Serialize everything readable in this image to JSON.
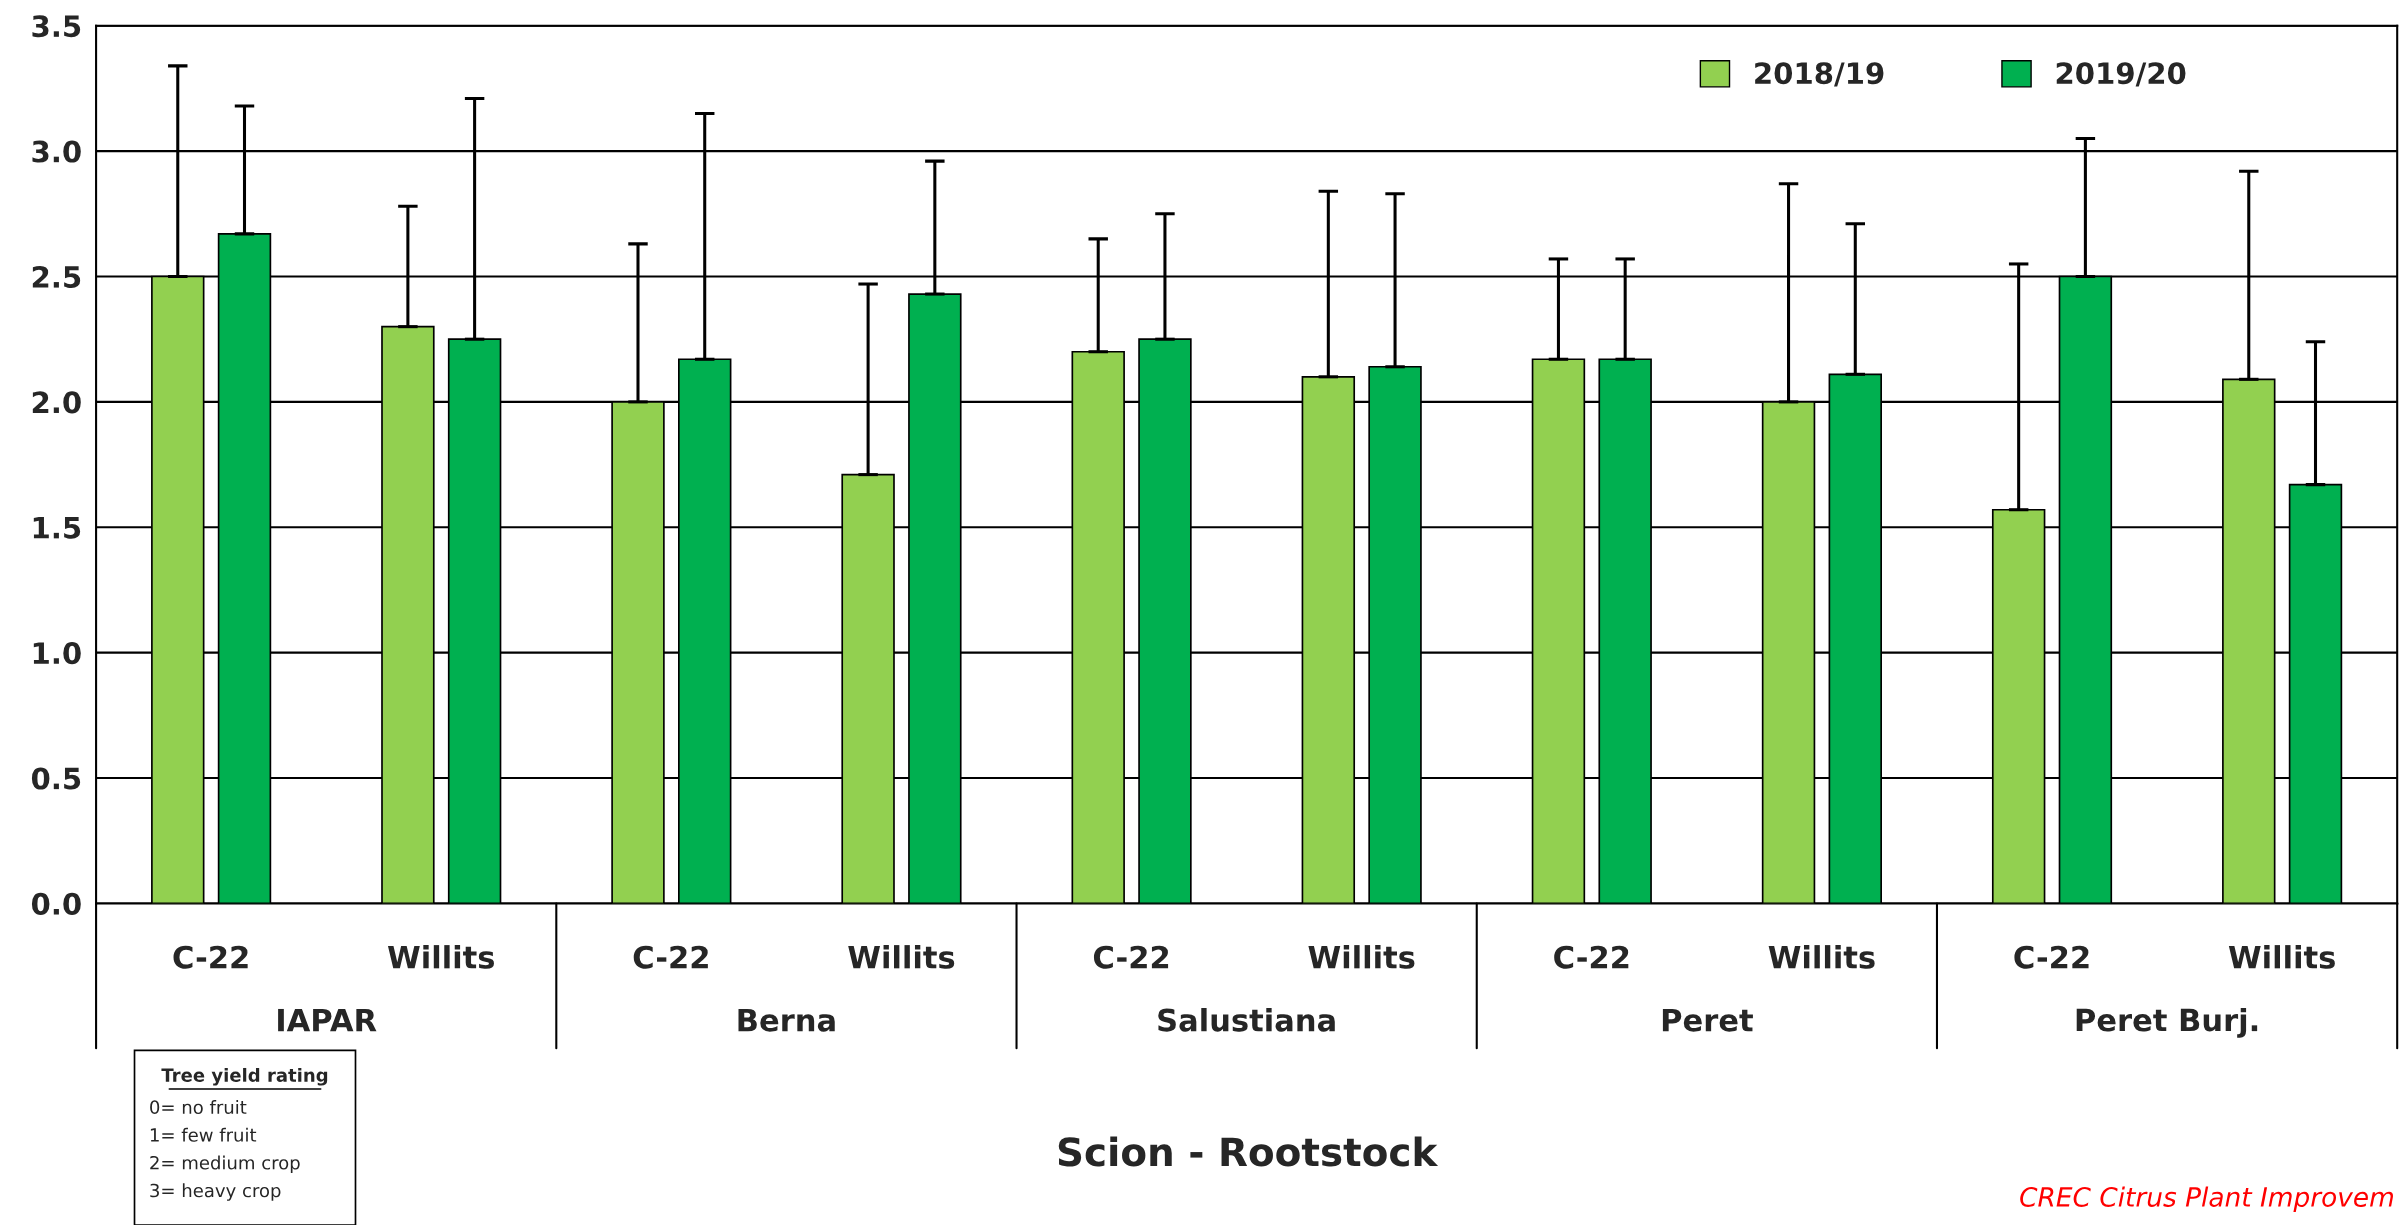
{
  "chart_data": {
    "type": "bar",
    "xlabel": "Scion - Rootstock",
    "categories": [
      "C-22",
      "Willits",
      "C-22",
      "Willits",
      "C-22",
      "Willits",
      "C-22",
      "Willits",
      "C-22",
      "Willits"
    ],
    "series": [
      {
        "name": "2018/19",
        "color": "#92d050",
        "values": [
          2.5,
          2.3,
          2.0,
          1.71,
          2.2,
          2.1,
          2.17,
          2.0,
          1.57,
          2.09
        ],
        "errors": [
          [
            2.5,
            3.34
          ],
          [
            2.3,
            2.78
          ],
          [
            2.0,
            2.63
          ],
          [
            1.71,
            2.47
          ],
          [
            2.2,
            2.65
          ],
          [
            2.1,
            2.84
          ],
          [
            2.17,
            2.57
          ],
          [
            2.0,
            2.87
          ],
          [
            1.57,
            2.55
          ],
          [
            2.09,
            2.92
          ]
        ]
      },
      {
        "name": "2019/20",
        "color": "#00b050",
        "values": [
          2.67,
          2.25,
          2.17,
          2.43,
          2.25,
          2.14,
          2.17,
          2.11,
          2.5,
          1.67
        ],
        "errors": [
          [
            2.67,
            3.18
          ],
          [
            2.25,
            3.21
          ],
          [
            2.17,
            3.15
          ],
          [
            2.43,
            2.96
          ],
          [
            2.25,
            2.75
          ],
          [
            2.14,
            2.83
          ],
          [
            2.17,
            2.57
          ],
          [
            2.11,
            2.71
          ],
          [
            2.5,
            3.05
          ],
          [
            1.67,
            2.24
          ]
        ]
      }
    ],
    "ylim": [
      0,
      3.5
    ],
    "yticks": [
      {
        "value": 0,
        "label": "0.0"
      },
      0.5,
      {
        "value": 1,
        "label": "1.0"
      },
      1.5,
      {
        "value": 2,
        "label": "2.0"
      },
      2.5,
      {
        "value": 3,
        "label": "3.0"
      },
      3.5
    ],
    "grid": "y",
    "legend": "top right",
    "annotations": [
      "IAPAR",
      "Berna",
      "Salustiana",
      "Peret",
      "Peret Burj.",
      "Tree yield rating",
      "0= no fruit\n1= few fruit\n2= medium crop\n3= heavy crop",
      "CREC Citrus Plant Improvem"
    ]
  }
}
